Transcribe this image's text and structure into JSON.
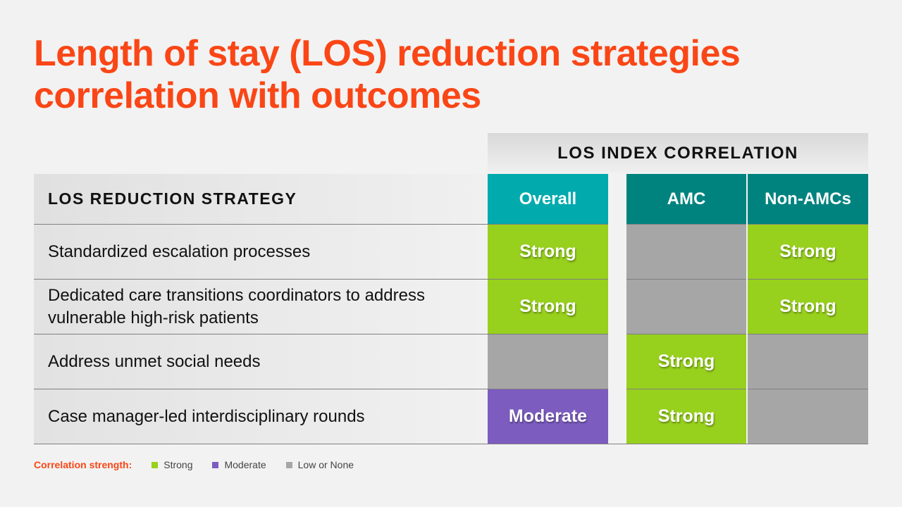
{
  "title": "Length of stay (LOS) reduction strategies correlation with outcomes",
  "table": {
    "group_header": "LOS INDEX CORRELATION",
    "strategy_header": "LOS REDUCTION STRATEGY",
    "columns": [
      {
        "label": "Overall",
        "color": "#00aaad"
      },
      {
        "label": "AMC",
        "color": "#00837f"
      },
      {
        "label": "Non-AMCs",
        "color": "#00837f"
      }
    ],
    "rows": [
      {
        "label": "Standardized escalation processes",
        "cells": [
          {
            "text": "Strong",
            "level": "strong"
          },
          {
            "text": "",
            "level": "none"
          },
          {
            "text": "Strong",
            "level": "strong"
          }
        ]
      },
      {
        "label": "Dedicated care transitions coordinators to address vulnerable high-risk patients",
        "cells": [
          {
            "text": "Strong",
            "level": "strong"
          },
          {
            "text": "",
            "level": "none"
          },
          {
            "text": "Strong",
            "level": "strong"
          }
        ]
      },
      {
        "label": "Address unmet social needs",
        "cells": [
          {
            "text": "",
            "level": "none"
          },
          {
            "text": "Strong",
            "level": "strong"
          },
          {
            "text": "",
            "level": "none"
          }
        ]
      },
      {
        "label": "Case manager-led interdisciplinary rounds",
        "cells": [
          {
            "text": "Moderate",
            "level": "moderate"
          },
          {
            "text": "Strong",
            "level": "strong"
          },
          {
            "text": "",
            "level": "none"
          }
        ]
      }
    ]
  },
  "legend": {
    "title": "Correlation strength:",
    "items": [
      {
        "label": "Strong",
        "color": "#97d01d"
      },
      {
        "label": "Moderate",
        "color": "#7c5cbf"
      },
      {
        "label": "Low or None",
        "color": "#a6a6a6"
      }
    ]
  },
  "colors": {
    "strong": "#97d01d",
    "moderate": "#7c5cbf",
    "none": "#a6a6a6",
    "accent": "#fa4616"
  }
}
